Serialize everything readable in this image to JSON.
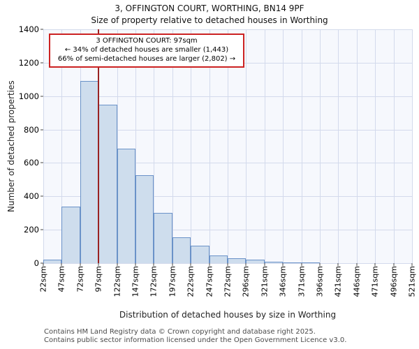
{
  "title": "3, OFFINGTON COURT, WORTHING, BN14 9PF",
  "subtitle": "Size of property relative to detached houses in Worthing",
  "chart_data": {
    "type": "bar",
    "title": "3, OFFINGTON COURT, WORTHING, BN14 9PF",
    "subtitle": "Size of property relative to detached houses in Worthing",
    "xlabel": "Distribution of detached houses by size in Worthing",
    "ylabel": "Number of detached properties",
    "ylim": [
      0,
      1400
    ],
    "ytick_step": 200,
    "grid": true,
    "categories": [
      "22sqm",
      "47sqm",
      "72sqm",
      "97sqm",
      "122sqm",
      "147sqm",
      "172sqm",
      "197sqm",
      "222sqm",
      "247sqm",
      "272sqm",
      "296sqm",
      "321sqm",
      "346sqm",
      "371sqm",
      "396sqm",
      "421sqm",
      "446sqm",
      "471sqm",
      "496sqm",
      "521sqm"
    ],
    "values": [
      20,
      340,
      1090,
      950,
      685,
      525,
      300,
      155,
      105,
      45,
      30,
      20,
      10,
      5,
      3,
      0,
      0,
      0,
      0,
      0
    ],
    "bar_fill": "#cedded",
    "bar_border": "#6a92c8",
    "marker": {
      "category": "97sqm",
      "color": "#992222"
    },
    "annotation": {
      "border_color": "#cc2222",
      "lines": [
        "3 OFFINGTON COURT: 97sqm",
        "← 34% of detached houses are smaller (1,443)",
        "66% of semi-detached houses are larger (2,802) →"
      ]
    }
  },
  "footer": {
    "line1": "Contains HM Land Registry data © Crown copyright and database right 2025.",
    "line2": "Contains public sector information licensed under the Open Government Licence v3.0."
  }
}
